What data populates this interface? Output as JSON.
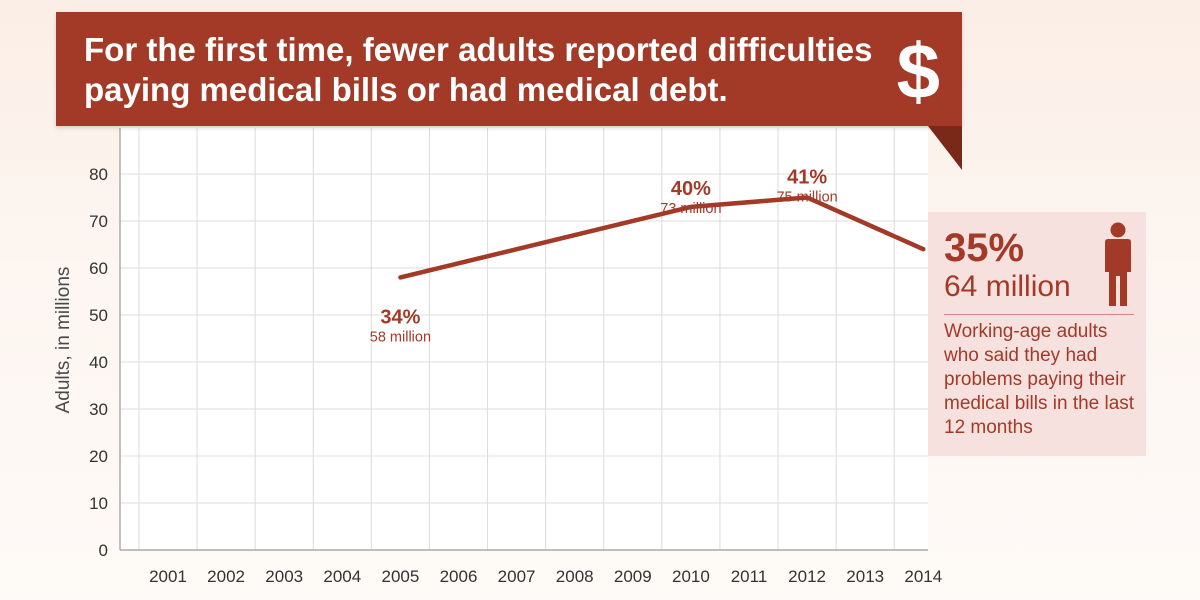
{
  "banner": {
    "title": "For the first time, fewer adults reported difficulties\npaying medical bills or had medical debt.",
    "icon": "dollar-sign-icon",
    "symbol": "$"
  },
  "colors": {
    "accent": "#a33a28",
    "callout_bg": "#f6e1df",
    "grid": "#dcdcdc"
  },
  "callout": {
    "percent": "35%",
    "amount": "64 million",
    "description": "Working-age adults who said they had problems paying their medical bills in the last 12 months",
    "icon": "person-icon"
  },
  "chart_data": {
    "type": "line",
    "title": "For the first time, fewer adults reported difficulties paying medical bills or had medical debt.",
    "ylabel": "Adults, in millions",
    "xlabel": "",
    "categories": [
      "2001",
      "2002",
      "2003",
      "2004",
      "2005",
      "2006",
      "2007",
      "2008",
      "2009",
      "2010",
      "2011",
      "2012",
      "2013",
      "2014"
    ],
    "ylim": [
      0,
      80
    ],
    "yticks": [
      0,
      10,
      20,
      30,
      40,
      50,
      60,
      70,
      80
    ],
    "grid": true,
    "series": [
      {
        "points": [
          {
            "x": "2005",
            "y": 58
          },
          {
            "x": "2010",
            "y": 73
          },
          {
            "x": "2012",
            "y": 75
          },
          {
            "x": "2014",
            "y": 64
          }
        ]
      }
    ],
    "annotations": [
      {
        "x": "2005",
        "pct": "34%",
        "value": "58 million"
      },
      {
        "x": "2010",
        "pct": "40%",
        "value": "73 million"
      },
      {
        "x": "2012",
        "pct": "41%",
        "value": "75 million"
      }
    ]
  }
}
